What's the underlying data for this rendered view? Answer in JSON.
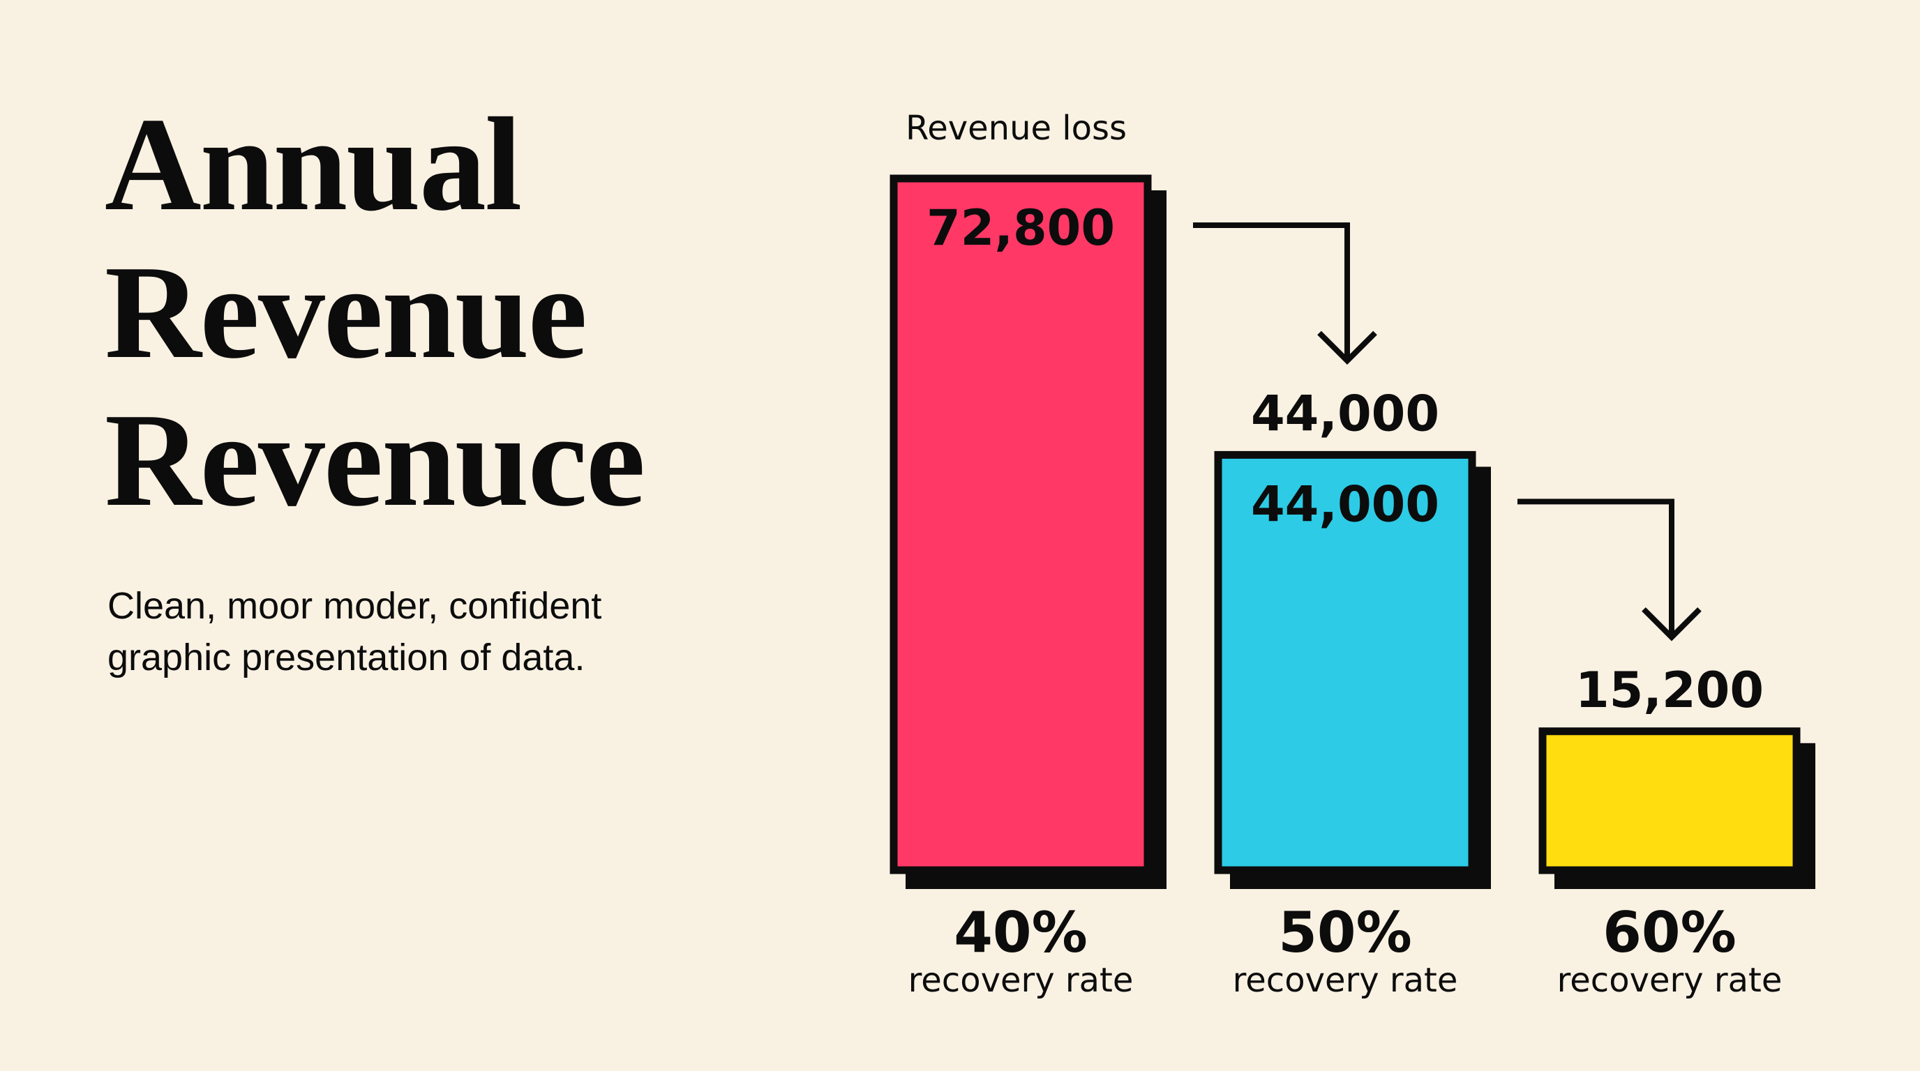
{
  "title_lines": [
    "Annual",
    "Revenue",
    "Revenuce"
  ],
  "subtitle_lines": [
    "Clean, moor moder, confident",
    "graphic presentation of data."
  ],
  "colors": {
    "background": "#f9f1e2",
    "ink": "#0c0c0c",
    "red": "#ff3866",
    "blue": "#2dcbe5",
    "yellow": "#ffdd0e"
  },
  "chart_data": {
    "type": "bar",
    "title": "Revenue loss",
    "categories": [
      "40%",
      "50%",
      "60%"
    ],
    "category_sublabel": "recovery rate",
    "values": [
      72800,
      44000,
      15200
    ],
    "value_labels_inside": [
      "72,800",
      "44,000",
      ""
    ],
    "value_labels_above": [
      "",
      "44,000",
      "15,200"
    ],
    "bar_colors": [
      "#ff3866",
      "#2dcbe5",
      "#ffdd0e"
    ],
    "arrows": [
      {
        "from": "40%",
        "to": "50%"
      },
      {
        "from": "50%",
        "to": "60%"
      }
    ],
    "grid": false,
    "legend": "none"
  }
}
